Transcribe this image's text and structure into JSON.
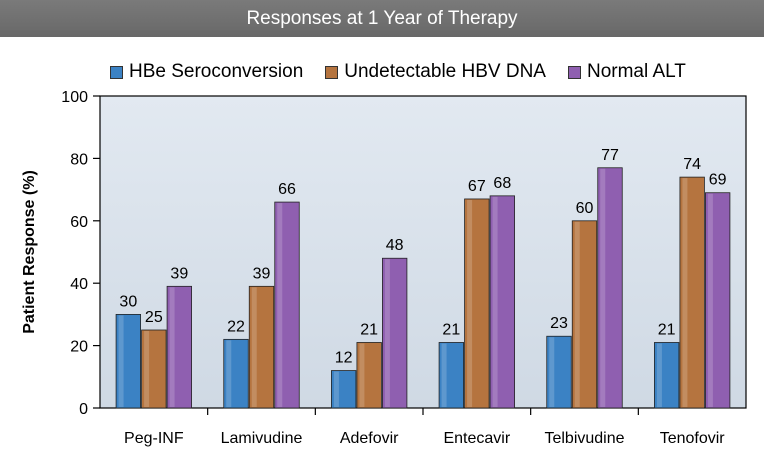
{
  "header": {
    "title": "Responses at 1 Year of Therapy"
  },
  "colors": {
    "title_bar": "#686868",
    "plot_bg_top": "#e2e9f1",
    "plot_bg_bottom": "#cfd9e4",
    "series": [
      "#3b82c4",
      "#b5743f",
      "#8f5fb0"
    ]
  },
  "chart_data": {
    "type": "bar",
    "title": "Responses at 1 Year of Therapy",
    "xlabel": "",
    "ylabel": "Patient Response  (%)",
    "ylim": [
      0,
      100
    ],
    "yticks": [
      0,
      20,
      40,
      60,
      80,
      100
    ],
    "legend_position": "top",
    "categories": [
      "Peg-INF",
      "Lamivudine",
      "Adefovir",
      "Entecavir",
      "Telbivudine",
      "Tenofovir"
    ],
    "series": [
      {
        "name": "HBe Seroconversion",
        "values": [
          30,
          22,
          12,
          21,
          23,
          21
        ]
      },
      {
        "name": "Undetectable HBV DNA",
        "values": [
          25,
          39,
          21,
          67,
          60,
          74
        ]
      },
      {
        "name": "Normal ALT",
        "values": [
          39,
          66,
          48,
          68,
          77,
          69
        ]
      }
    ]
  }
}
